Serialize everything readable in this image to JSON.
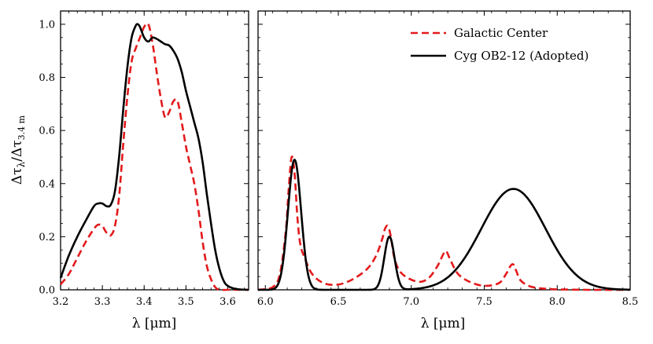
{
  "chart_data": [
    {
      "type": "line",
      "xlabel": "λ [μm]",
      "ylabel_main": "Δτ",
      "ylabel_sub1": "λ",
      "ylabel_mid": "/Δτ",
      "ylabel_sub2": "3.4 m",
      "xlim": [
        3.2,
        3.65
      ],
      "ylim": [
        0.0,
        1.05
      ],
      "xticks": [
        "3.2",
        "3.3",
        "3.4",
        "3.5",
        "3.6"
      ],
      "yticks": [
        "0.0",
        "0.2",
        "0.4",
        "0.6",
        "0.8",
        "1.0"
      ],
      "series": [
        {
          "name": "Galactic Center",
          "color": "#e31a1c",
          "style": "dashed",
          "x": [
            3.2,
            3.22,
            3.24,
            3.26,
            3.28,
            3.29,
            3.3,
            3.31,
            3.32,
            3.33,
            3.34,
            3.35,
            3.36,
            3.37,
            3.38,
            3.39,
            3.4,
            3.41,
            3.42,
            3.43,
            3.44,
            3.45,
            3.46,
            3.47,
            3.48,
            3.49,
            3.5,
            3.51,
            3.52,
            3.53,
            3.54,
            3.55,
            3.56,
            3.57,
            3.58,
            3.6,
            3.62,
            3.65
          ],
          "y": [
            0.02,
            0.06,
            0.12,
            0.18,
            0.23,
            0.245,
            0.24,
            0.215,
            0.205,
            0.24,
            0.35,
            0.55,
            0.73,
            0.86,
            0.91,
            0.95,
            0.99,
            1.0,
            0.93,
            0.82,
            0.72,
            0.65,
            0.67,
            0.71,
            0.71,
            0.63,
            0.54,
            0.47,
            0.4,
            0.3,
            0.18,
            0.09,
            0.04,
            0.01,
            0.0,
            0.0,
            0.0,
            0.0
          ]
        },
        {
          "name": "Cyg OB2-12 (Adopted)",
          "color": "#000000",
          "style": "solid",
          "x": [
            3.2,
            3.22,
            3.24,
            3.26,
            3.28,
            3.29,
            3.3,
            3.31,
            3.32,
            3.33,
            3.34,
            3.35,
            3.36,
            3.37,
            3.38,
            3.385,
            3.39,
            3.4,
            3.41,
            3.42,
            3.43,
            3.44,
            3.45,
            3.46,
            3.47,
            3.48,
            3.49,
            3.5,
            3.51,
            3.52,
            3.53,
            3.54,
            3.55,
            3.56,
            3.57,
            3.58,
            3.59,
            3.6,
            3.62,
            3.65
          ],
          "y": [
            0.045,
            0.13,
            0.2,
            0.26,
            0.315,
            0.325,
            0.325,
            0.315,
            0.32,
            0.37,
            0.5,
            0.68,
            0.84,
            0.95,
            0.995,
            1.0,
            0.99,
            0.95,
            0.935,
            0.95,
            0.945,
            0.935,
            0.925,
            0.92,
            0.9,
            0.87,
            0.82,
            0.75,
            0.69,
            0.63,
            0.57,
            0.48,
            0.36,
            0.25,
            0.15,
            0.08,
            0.035,
            0.015,
            0.003,
            0.0
          ]
        }
      ]
    },
    {
      "type": "line",
      "xlabel": "λ [μm]",
      "xlim": [
        5.95,
        8.5
      ],
      "ylim": [
        0.0,
        1.05
      ],
      "xticks": [
        "6.0",
        "6.5",
        "7.0",
        "7.5",
        "8.0",
        "8.5"
      ],
      "legend_position": "top-right",
      "series": [
        {
          "name": "Galactic Center",
          "color": "#e31a1c",
          "style": "dashed",
          "x": [
            5.95,
            6.05,
            6.1,
            6.14,
            6.16,
            6.18,
            6.2,
            6.22,
            6.24,
            6.27,
            6.32,
            6.4,
            6.5,
            6.6,
            6.7,
            6.76,
            6.8,
            6.82,
            6.84,
            6.86,
            6.88,
            6.91,
            6.96,
            7.05,
            7.12,
            7.18,
            7.22,
            7.24,
            7.27,
            7.32,
            7.4,
            7.5,
            7.6,
            7.65,
            7.68,
            7.7,
            7.72,
            7.75,
            7.82,
            7.95,
            8.2,
            8.5
          ],
          "y": [
            0.0,
            0.01,
            0.06,
            0.22,
            0.38,
            0.5,
            0.44,
            0.27,
            0.17,
            0.12,
            0.06,
            0.025,
            0.02,
            0.04,
            0.08,
            0.13,
            0.19,
            0.23,
            0.24,
            0.2,
            0.13,
            0.08,
            0.05,
            0.03,
            0.045,
            0.09,
            0.135,
            0.145,
            0.11,
            0.06,
            0.03,
            0.015,
            0.025,
            0.06,
            0.09,
            0.095,
            0.07,
            0.035,
            0.012,
            0.003,
            0.0,
            0.0
          ]
        },
        {
          "name": "Cyg OB2-12 (Adopted)",
          "color": "#000000",
          "style": "solid"
        }
      ]
    }
  ]
}
